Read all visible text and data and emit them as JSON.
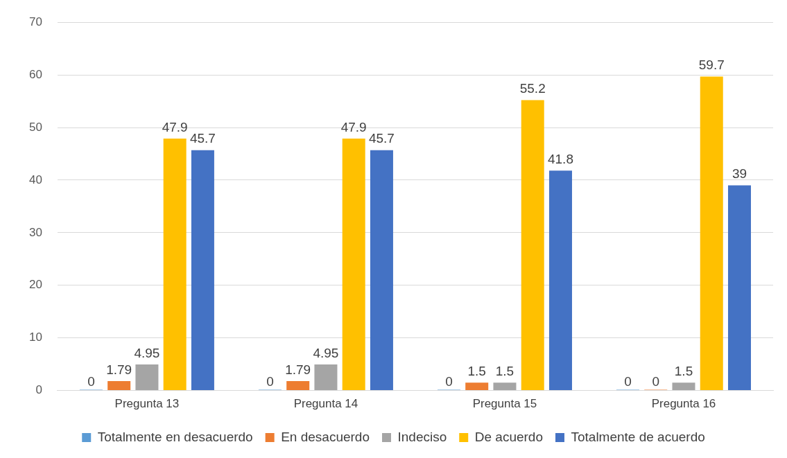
{
  "chart_data": {
    "type": "bar",
    "categories": [
      "Pregunta 13",
      "Pregunta 14",
      "Pregunta 15",
      "Pregunta 16"
    ],
    "series": [
      {
        "name": "Totalmente en desacuerdo",
        "color": "#5b9bd5",
        "values": [
          0,
          0,
          0,
          0
        ]
      },
      {
        "name": "En desacuerdo",
        "color": "#ed7d31",
        "values": [
          1.79,
          1.79,
          1.5,
          0
        ]
      },
      {
        "name": "Indeciso",
        "color": "#a5a5a5",
        "values": [
          4.95,
          4.95,
          1.5,
          1.5
        ]
      },
      {
        "name": "De acuerdo",
        "color": "#ffc000",
        "values": [
          47.9,
          47.9,
          55.2,
          59.7
        ]
      },
      {
        "name": "Totalmente de acuerdo",
        "color": "#4472c4",
        "values": [
          45.7,
          45.7,
          41.8,
          39
        ]
      }
    ],
    "ylim": [
      0,
      70
    ],
    "yticks": [
      0,
      10,
      20,
      30,
      40,
      50,
      60,
      70
    ],
    "grid": "y",
    "legend": "bottom",
    "data_labels": true
  }
}
